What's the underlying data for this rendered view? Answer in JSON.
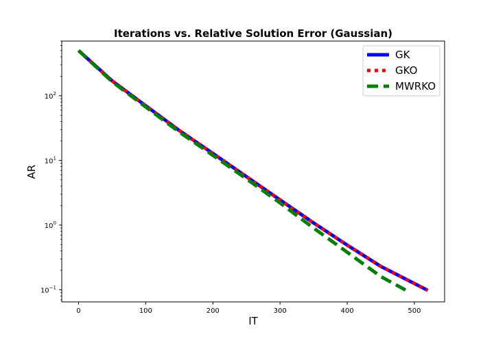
{
  "chart_data": {
    "type": "line",
    "title": "Iterations vs. Relative Solution Error (Gaussian)",
    "xlabel": "IT",
    "ylabel": "AR",
    "xlim": [
      -25,
      545
    ],
    "ylim": [
      0.065,
      700
    ],
    "yscale": "log",
    "grid": false,
    "legend_position": "top-right",
    "x_ticks": [
      {
        "value": 0,
        "label": "0"
      },
      {
        "value": 100,
        "label": "100"
      },
      {
        "value": 200,
        "label": "200"
      },
      {
        "value": 300,
        "label": "300"
      },
      {
        "value": 400,
        "label": "400"
      },
      {
        "value": 500,
        "label": "500"
      }
    ],
    "y_ticks": [
      {
        "value": 0.1,
        "base": "10",
        "exp": "−1"
      },
      {
        "value": 1,
        "base": "10",
        "exp": "0"
      },
      {
        "value": 10,
        "base": "10",
        "exp": "1"
      },
      {
        "value": 100,
        "base": "10",
        "exp": "2"
      }
    ],
    "series": [
      {
        "name": "GK",
        "color": "#0000ff",
        "style": "solid",
        "x": [
          0,
          50,
          100,
          150,
          200,
          250,
          300,
          350,
          400,
          450,
          520
        ],
        "y": [
          500,
          170,
          70,
          29,
          12.8,
          5.6,
          2.45,
          1.08,
          0.49,
          0.23,
          0.098
        ]
      },
      {
        "name": "GKO",
        "color": "#ff0000",
        "style": "dotted",
        "x": [
          0,
          50,
          100,
          150,
          200,
          250,
          300,
          350,
          400,
          450,
          520
        ],
        "y": [
          500,
          170,
          70,
          29,
          12.8,
          5.6,
          2.45,
          1.08,
          0.49,
          0.23,
          0.098
        ]
      },
      {
        "name": "MWRKO",
        "color": "#008000",
        "style": "dashed",
        "x": [
          0,
          50,
          100,
          150,
          200,
          250,
          300,
          350,
          400,
          450,
          490
        ],
        "y": [
          500,
          165,
          67,
          27.5,
          12,
          5.2,
          2.2,
          0.9,
          0.38,
          0.16,
          0.095
        ]
      }
    ]
  }
}
